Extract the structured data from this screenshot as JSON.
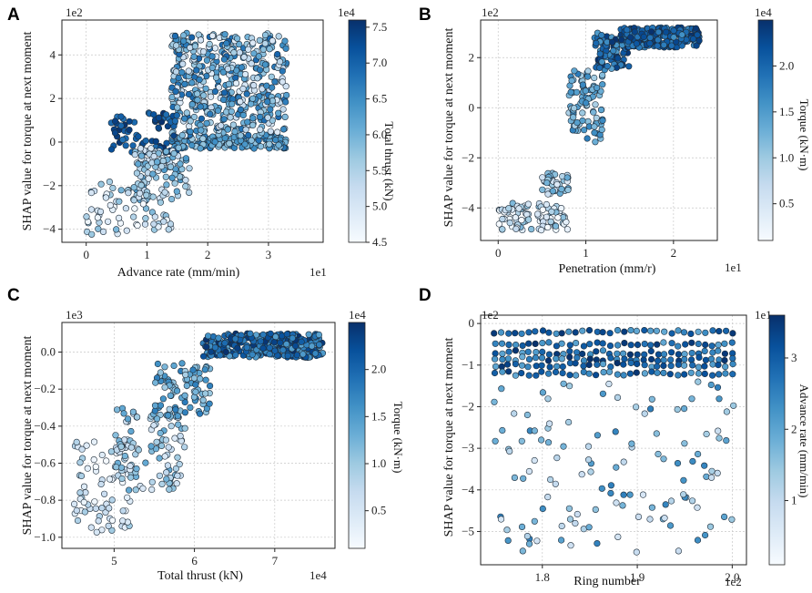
{
  "figure": {
    "colormap": [
      "#f7fbff",
      "#deebf7",
      "#c6dbef",
      "#9ecae1",
      "#6baed6",
      "#4292c6",
      "#2171b5",
      "#08519c",
      "#08306b"
    ]
  },
  "chart_data": [
    {
      "id": "A",
      "panel_letter": "A",
      "type": "scatter",
      "xlabel": "Advance rate (mm/min)",
      "ylabel": "SHAP value for torque at next moment",
      "x_multiplier": "1e1",
      "y_multiplier": "1e2",
      "xlim": [
        -0.4,
        3.9
      ],
      "ylim": [
        -4.6,
        5.6
      ],
      "xticks": [
        0,
        1,
        2,
        3
      ],
      "xtick_labels": [
        "0",
        "1",
        "2",
        "3"
      ],
      "yticks": [
        -4,
        -2,
        0,
        2,
        4
      ],
      "ytick_labels": [
        "−4",
        "−2",
        "0",
        "2",
        "4"
      ],
      "colorbar": {
        "label": "Total thrust (kN)",
        "multiplier": "1e4",
        "range": [
          4.5,
          7.6
        ],
        "ticks": [
          4.5,
          5.0,
          5.5,
          6.0,
          6.5,
          7.0,
          7.5
        ],
        "tick_labels": [
          "4.5",
          "5.0",
          "5.5",
          "6.0",
          "6.5",
          "7.0",
          "7.5"
        ]
      },
      "clusters": [
        {
          "x_range": [
            1.4,
            3.3
          ],
          "y_range": [
            -0.3,
            0.3
          ],
          "c_range": [
            5.6,
            6.8
          ],
          "n": 180
        },
        {
          "x_range": [
            1.4,
            3.3
          ],
          "y_range": [
            0.3,
            5.0
          ],
          "c_range": [
            4.8,
            7.0
          ],
          "n": 500
        },
        {
          "x_range": [
            0.4,
            1.5
          ],
          "y_range": [
            -0.5,
            1.4
          ],
          "c_range": [
            6.8,
            7.6
          ],
          "n": 70
        },
        {
          "x_range": [
            0.8,
            1.7
          ],
          "y_range": [
            -2.8,
            -0.2
          ],
          "c_range": [
            4.9,
            6.4
          ],
          "n": 110
        },
        {
          "x_range": [
            0.0,
            1.4
          ],
          "y_range": [
            -4.3,
            -1.8
          ],
          "c_range": [
            4.5,
            6.0
          ],
          "n": 70
        }
      ]
    },
    {
      "id": "B",
      "panel_letter": "B",
      "type": "scatter",
      "xlabel": "Penetration (mm/r)",
      "ylabel": "SHAP value for torque at next moment",
      "x_multiplier": "1e1",
      "y_multiplier": "1e2",
      "xlim": [
        -0.2,
        2.5
      ],
      "ylim": [
        -5.3,
        3.5
      ],
      "xticks": [
        0,
        1,
        2
      ],
      "xtick_labels": [
        "0",
        "1",
        "2"
      ],
      "yticks": [
        -4,
        -2,
        0,
        2
      ],
      "ytick_labels": [
        "−4",
        "−2",
        "0",
        "2"
      ],
      "colorbar": {
        "label": "Torque (kN·m)",
        "multiplier": "1e4",
        "range": [
          0.1,
          2.5
        ],
        "ticks": [
          0.5,
          1.0,
          1.5,
          2.0
        ],
        "tick_labels": [
          "0.5",
          "1.0",
          "1.5",
          "2.0"
        ]
      },
      "clusters": [
        {
          "x_range": [
            0.0,
            0.8
          ],
          "y_range": [
            -4.9,
            -3.8
          ],
          "c_range": [
            0.1,
            1.2
          ],
          "n": 90
        },
        {
          "x_range": [
            0.5,
            0.8
          ],
          "y_range": [
            -3.5,
            -2.6
          ],
          "c_range": [
            0.4,
            1.4
          ],
          "n": 40
        },
        {
          "x_range": [
            0.8,
            1.2
          ],
          "y_range": [
            -1.4,
            1.5
          ],
          "c_range": [
            0.8,
            1.8
          ],
          "n": 90
        },
        {
          "x_range": [
            1.1,
            1.5
          ],
          "y_range": [
            1.5,
            3.0
          ],
          "c_range": [
            1.4,
            2.5
          ],
          "n": 90
        },
        {
          "x_range": [
            1.4,
            2.3
          ],
          "y_range": [
            2.4,
            3.2
          ],
          "c_range": [
            1.6,
            2.5
          ],
          "n": 260
        }
      ]
    },
    {
      "id": "C",
      "panel_letter": "C",
      "type": "scatter",
      "xlabel": "Total thrust (kN)",
      "ylabel": "SHAP value for torque at next moment",
      "x_multiplier": "1e4",
      "y_multiplier": "1e3",
      "xlim": [
        4.35,
        7.75
      ],
      "ylim": [
        -1.06,
        0.16
      ],
      "xticks": [
        5,
        6,
        7
      ],
      "xtick_labels": [
        "5",
        "6",
        "7"
      ],
      "yticks": [
        -1.0,
        -0.8,
        -0.6,
        -0.4,
        -0.2,
        0.0
      ],
      "ytick_labels": [
        "−1.0",
        "−0.8",
        "−0.6",
        "−0.4",
        "−0.2",
        "0.0"
      ],
      "colorbar": {
        "label": "Torque (kN·m)",
        "multiplier": "1e4",
        "range": [
          0.1,
          2.5
        ],
        "ticks": [
          0.5,
          1.0,
          1.5,
          2.0
        ],
        "tick_labels": [
          "0.5",
          "1.0",
          "1.5",
          "2.0"
        ]
      },
      "clusters": [
        {
          "x_range": [
            4.5,
            5.2
          ],
          "y_range": [
            -1.0,
            -0.48
          ],
          "c_range": [
            0.1,
            1.0
          ],
          "n": 70
        },
        {
          "x_range": [
            5.0,
            5.9
          ],
          "y_range": [
            -0.75,
            -0.3
          ],
          "c_range": [
            0.4,
            1.4
          ],
          "n": 110
        },
        {
          "x_range": [
            5.5,
            6.2
          ],
          "y_range": [
            -0.35,
            -0.05
          ],
          "c_range": [
            0.9,
            1.8
          ],
          "n": 90
        },
        {
          "x_range": [
            6.1,
            7.6
          ],
          "y_range": [
            -0.03,
            0.1
          ],
          "c_range": [
            1.4,
            2.5
          ],
          "n": 330
        }
      ]
    },
    {
      "id": "D",
      "panel_letter": "D",
      "type": "scatter",
      "xlabel": "Ring number",
      "ylabel": "SHAP value for torque at next moment",
      "x_multiplier": "1e2",
      "y_multiplier": "1e2",
      "xlim": [
        1.735,
        2.015
      ],
      "ylim": [
        -5.8,
        0.2
      ],
      "xticks": [
        1.8,
        1.9,
        2.0
      ],
      "xtick_labels": [
        "1.8",
        "1.9",
        "2.0"
      ],
      "yticks": [
        0,
        -1,
        -2,
        -3,
        -4,
        -5
      ],
      "ytick_labels": [
        "0",
        "−1",
        "−2",
        "−3",
        "−4",
        "−5"
      ],
      "colorbar": {
        "label": "Advance rate (mm/min)",
        "multiplier": "1e1",
        "range": [
          0.1,
          3.6
        ],
        "ticks": [
          1,
          2,
          3
        ],
        "tick_labels": [
          "1",
          "2",
          "3"
        ]
      },
      "column_x_range": [
        1.75,
        2.0
      ],
      "column_count": 36,
      "band_levels": [
        -0.2,
        -0.5,
        -0.7,
        -0.85,
        -1.0,
        -1.2
      ],
      "sparse_y_range": [
        -5.5,
        -1.4
      ]
    }
  ]
}
